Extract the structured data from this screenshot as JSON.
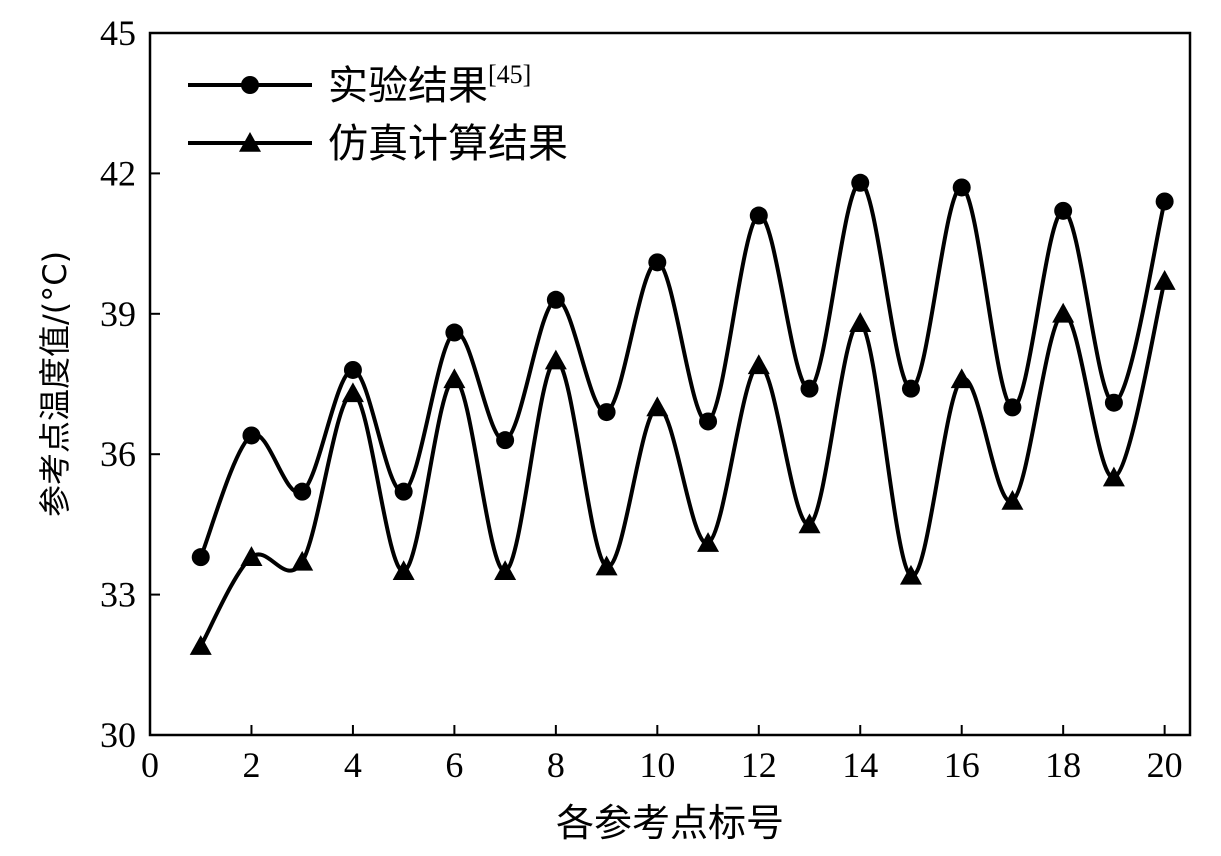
{
  "chart_data": {
    "type": "line",
    "title": "",
    "xlabel": "各参考点标号",
    "ylabel": "参考点温度值/(°C)",
    "xlim": [
      0,
      20.5
    ],
    "ylim": [
      30,
      45
    ],
    "x_ticks": [
      0,
      2,
      4,
      6,
      8,
      10,
      12,
      14,
      16,
      18,
      20
    ],
    "y_ticks": [
      30,
      33,
      36,
      39,
      42,
      45
    ],
    "grid": false,
    "legend_position": "top-left",
    "x": [
      1,
      2,
      3,
      4,
      5,
      6,
      7,
      8,
      9,
      10,
      11,
      12,
      13,
      14,
      15,
      16,
      17,
      18,
      19,
      20
    ],
    "series": [
      {
        "name": "实验结果",
        "name_superscript": "[45]",
        "marker": "circle",
        "color": "#000000",
        "values": [
          33.8,
          36.4,
          35.2,
          37.8,
          35.2,
          38.6,
          36.3,
          39.3,
          36.9,
          40.1,
          36.7,
          41.1,
          37.4,
          41.8,
          37.4,
          41.7,
          37.0,
          41.2,
          37.1,
          41.4
        ]
      },
      {
        "name": "仿真计算结果",
        "marker": "triangle",
        "color": "#000000",
        "values": [
          31.9,
          33.8,
          33.7,
          37.3,
          33.5,
          37.6,
          33.5,
          38.0,
          33.6,
          37.0,
          34.1,
          37.9,
          34.5,
          38.8,
          33.4,
          37.6,
          35.0,
          39.0,
          35.5,
          39.7
        ]
      }
    ]
  }
}
